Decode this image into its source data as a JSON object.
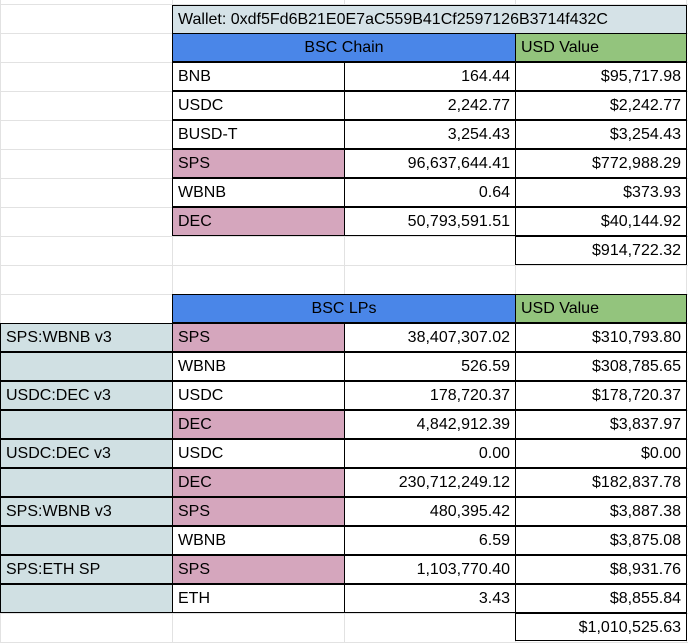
{
  "wallet": {
    "label": "Wallet: 0xdf5Fd6B21E0E7aC559B41Cf2597126B3714f432C"
  },
  "bsc_chain": {
    "header": "BSC Chain",
    "usd_header": "USD Value",
    "rows": [
      {
        "token": "BNB",
        "amount": "164.44",
        "usd": "$95,717.98",
        "highlight": "white"
      },
      {
        "token": "USDC",
        "amount": "2,242.77",
        "usd": "$2,242.77",
        "highlight": "white"
      },
      {
        "token": "BUSD-T",
        "amount": "3,254.43",
        "usd": "$3,254.43",
        "highlight": "white"
      },
      {
        "token": "SPS",
        "amount": "96,637,644.41",
        "usd": "$772,988.29",
        "highlight": "pink"
      },
      {
        "token": "WBNB",
        "amount": "0.64",
        "usd": "$373.93",
        "highlight": "white"
      },
      {
        "token": "DEC",
        "amount": "50,793,591.51",
        "usd": "$40,144.92",
        "highlight": "pink"
      }
    ],
    "total": "$914,722.32"
  },
  "bsc_lps": {
    "header": "BSC LPs",
    "usd_header": "USD Value",
    "rows": [
      {
        "pool": "SPS:WBNB v3",
        "token": "SPS",
        "amount": "38,407,307.02",
        "usd": "$310,793.80",
        "highlight": "pink"
      },
      {
        "pool": "",
        "token": "WBNB",
        "amount": "526.59",
        "usd": "$308,785.65",
        "highlight": "white"
      },
      {
        "pool": "USDC:DEC v3",
        "token": "USDC",
        "amount": "178,720.37",
        "usd": "$178,720.37",
        "highlight": "white"
      },
      {
        "pool": "",
        "token": "DEC",
        "amount": "4,842,912.39",
        "usd": "$3,837.97",
        "highlight": "pink"
      },
      {
        "pool": "USDC:DEC v3",
        "token": "USDC",
        "amount": "0.00",
        "usd": "$0.00",
        "highlight": "white"
      },
      {
        "pool": "",
        "token": "DEC",
        "amount": "230,712,249.12",
        "usd": "$182,837.78",
        "highlight": "pink"
      },
      {
        "pool": "SPS:WBNB v3",
        "token": "SPS",
        "amount": "480,395.42",
        "usd": "$3,887.38",
        "highlight": "pink"
      },
      {
        "pool": "",
        "token": "WBNB",
        "amount": "6.59",
        "usd": "$3,875.08",
        "highlight": "white"
      },
      {
        "pool": "SPS:ETH SP",
        "token": "SPS",
        "amount": "1,103,770.40",
        "usd": "$8,931.76",
        "highlight": "pink"
      },
      {
        "pool": "",
        "token": "ETH",
        "amount": "3.43",
        "usd": "$8,855.84",
        "highlight": "white"
      }
    ],
    "total": "$1,010,525.63"
  },
  "colors": {
    "header_blue": "#4a86e8",
    "usd_green": "#93c47d",
    "token_pink": "#d5a6bd",
    "pool_gray": "#d0e0e3",
    "wallet_bg": "#d5e2e7"
  }
}
